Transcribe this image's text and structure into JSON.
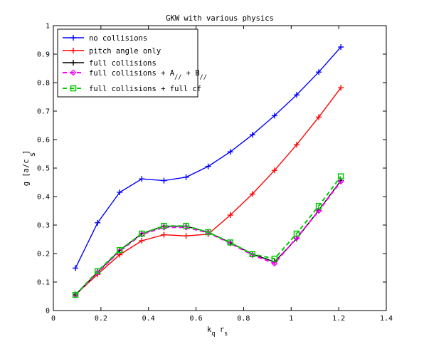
{
  "chart_data": {
    "type": "line",
    "title": "GKW with various physics",
    "xlabel": {
      "main": "k",
      "sub1": "q",
      "mid": " r",
      "sub2": "s"
    },
    "ylabel": {
      "main": "g  [a/c ]",
      "sub": "s"
    },
    "xlim": [
      0,
      1.4
    ],
    "ylim": [
      0,
      1
    ],
    "xticks": [
      "0",
      "0.2",
      "0.4",
      "0.6",
      "0.8",
      "1",
      "1.2",
      "1.4"
    ],
    "yticks": [
      "0",
      "0.1",
      "0.2",
      "0.3",
      "0.4",
      "0.5",
      "0.6",
      "0.7",
      "0.8",
      "0.9",
      "1"
    ],
    "grid": false,
    "legend_position": "top-left",
    "x": [
      0.093,
      0.186,
      0.279,
      0.372,
      0.465,
      0.558,
      0.651,
      0.744,
      0.837,
      0.93,
      1.023,
      1.116,
      1.209
    ],
    "series": [
      {
        "name": "no collisions",
        "color": "#0000ff",
        "marker": "plus",
        "dash": "solid",
        "values": [
          0.149,
          0.308,
          0.415,
          0.462,
          0.456,
          0.468,
          0.506,
          0.557,
          0.617,
          0.684,
          0.757,
          0.837,
          0.925
        ]
      },
      {
        "name": "pitch angle only",
        "color": "#ff0000",
        "marker": "plus",
        "dash": "solid",
        "values": [
          0.056,
          0.127,
          0.196,
          0.245,
          0.266,
          0.262,
          0.268,
          0.335,
          0.409,
          0.492,
          0.582,
          0.679,
          0.782
        ]
      },
      {
        "name": "full collisions",
        "color": "#000000",
        "marker": "plus",
        "dash": "solid",
        "values": [
          0.055,
          0.135,
          0.211,
          0.27,
          0.296,
          0.296,
          0.275,
          0.238,
          0.198,
          0.171,
          0.252,
          0.352,
          0.456
        ]
      },
      {
        "name": "full collisions + A// + B//",
        "label_parts": {
          "a": "full collisions + A",
          "s1": "//",
          "b": " + B",
          "s2": "//"
        },
        "color": "#ff00ff",
        "marker": "diamond",
        "dash": "dash",
        "values": [
          0.055,
          0.133,
          0.208,
          0.267,
          0.292,
          0.292,
          0.273,
          0.236,
          0.195,
          0.165,
          0.255,
          0.35,
          0.453
        ]
      },
      {
        "name": "full collisions + full cf",
        "color": "#00cc00",
        "marker": "square",
        "dash": "dash",
        "values": [
          0.055,
          0.138,
          0.212,
          0.27,
          0.297,
          0.297,
          0.275,
          0.239,
          0.198,
          0.182,
          0.27,
          0.367,
          0.471
        ]
      }
    ]
  }
}
